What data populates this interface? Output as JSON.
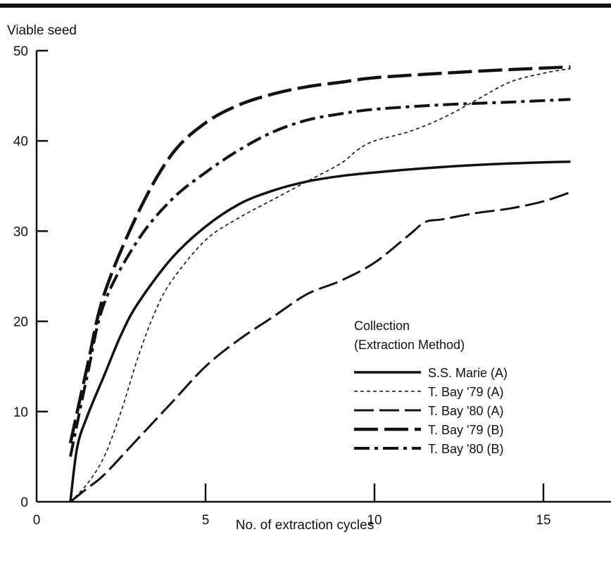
{
  "chart_data": {
    "type": "line",
    "title": "",
    "ylabel": "Viable seed",
    "xlabel": "No. of extraction cycles",
    "xlim": [
      0,
      17
    ],
    "ylim": [
      0,
      50
    ],
    "x_ticks": [
      0,
      5,
      10,
      15
    ],
    "y_ticks": [
      0,
      10,
      20,
      30,
      40,
      50
    ],
    "grid": false,
    "legend": {
      "placement": "center-right",
      "title_line1": "Collection",
      "title_line2": "(Extraction Method)"
    },
    "series": [
      {
        "name": "S.S. Marie (A)",
        "style": "solid",
        "x": [
          1,
          1.2,
          1.5,
          2,
          2.5,
          3,
          4,
          5,
          6,
          7,
          8,
          9,
          10,
          12,
          14,
          15.8
        ],
        "y": [
          0,
          6,
          9.5,
          14,
          18.5,
          22,
          27,
          30.5,
          33,
          34.5,
          35.5,
          36.1,
          36.5,
          37.1,
          37.5,
          37.7
        ]
      },
      {
        "name": "T. Bay '79 (A)",
        "style": "short-dash",
        "x": [
          1,
          1.5,
          2,
          2.5,
          3,
          3.5,
          4,
          5,
          6,
          7,
          8,
          9,
          9.5,
          10,
          11,
          12,
          13,
          14,
          15,
          15.8
        ],
        "y": [
          0,
          2,
          5,
          10,
          16,
          21,
          24.5,
          29,
          31.5,
          33.5,
          35.5,
          37.5,
          39,
          40,
          41,
          42.5,
          44.5,
          46.5,
          47.5,
          48
        ]
      },
      {
        "name": "T. Bay '80 (A)",
        "style": "medium-dash",
        "x": [
          1,
          1.5,
          2,
          3,
          4,
          5,
          6,
          7,
          8,
          9,
          10,
          11,
          11.5,
          12,
          13,
          14,
          15,
          15.8
        ],
        "y": [
          0,
          1.5,
          3,
          7,
          11,
          15,
          18,
          20.5,
          23,
          24.5,
          26.5,
          29.5,
          31,
          31.3,
          32,
          32.5,
          33.3,
          34.3
        ]
      },
      {
        "name": "T. Bay '79 (B)",
        "style": "long-dash",
        "x": [
          1,
          1.5,
          2,
          3,
          4,
          5,
          6,
          7,
          8,
          9,
          10,
          12,
          14,
          15.8
        ],
        "y": [
          6.5,
          15,
          23,
          32,
          38.5,
          42,
          44,
          45.2,
          46,
          46.5,
          47,
          47.5,
          47.9,
          48.2
        ]
      },
      {
        "name": "T. Bay '80 (B)",
        "style": "dash-dot",
        "x": [
          1,
          1.5,
          2,
          3,
          4,
          5,
          6,
          7,
          8,
          9,
          10,
          12,
          14,
          15.8
        ],
        "y": [
          5,
          14,
          22,
          29,
          33.5,
          36.5,
          39,
          41,
          42.3,
          43,
          43.5,
          44,
          44.3,
          44.6
        ]
      }
    ]
  }
}
